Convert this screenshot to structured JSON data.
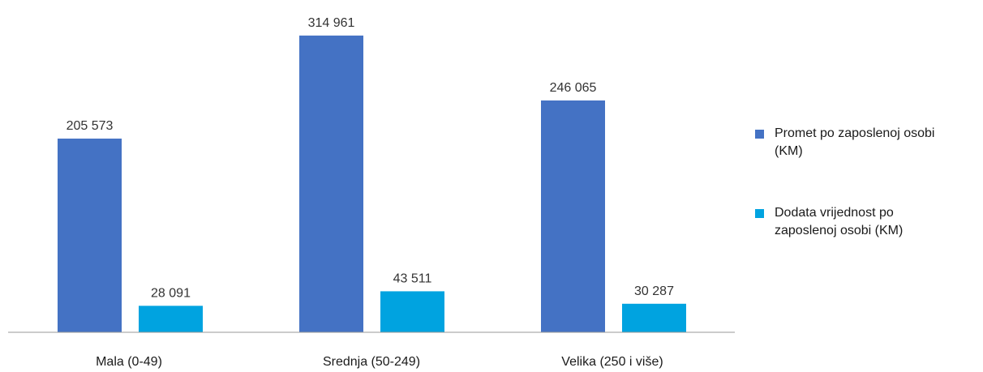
{
  "chart_data": {
    "type": "bar",
    "categories": [
      "Mala (0-49)",
      "Srednja (50-249)",
      "Velika (250 i više)"
    ],
    "series": [
      {
        "name": "Promet po zaposlenoj osobi (KM)",
        "name_lines": [
          "Promet po zaposlenoj osobi",
          "(KM)"
        ],
        "color": "#4472C4",
        "values": [
          205573,
          314961,
          246065
        ],
        "labels": [
          "205 573",
          "314 961",
          "246 065"
        ]
      },
      {
        "name": "Dodata vrijednost po zaposlenoj osobi (KM)",
        "name_lines": [
          "Dodata vrijednost po",
          "zaposlenoj osobi (KM)"
        ],
        "color": "#00A3E0",
        "values": [
          28091,
          43511,
          30287
        ],
        "labels": [
          "28 091",
          "43 511",
          "30 287"
        ]
      }
    ],
    "ylim": [
      0,
      320000
    ],
    "legend_position": "right",
    "grid": false,
    "axis_color": "#999999"
  }
}
